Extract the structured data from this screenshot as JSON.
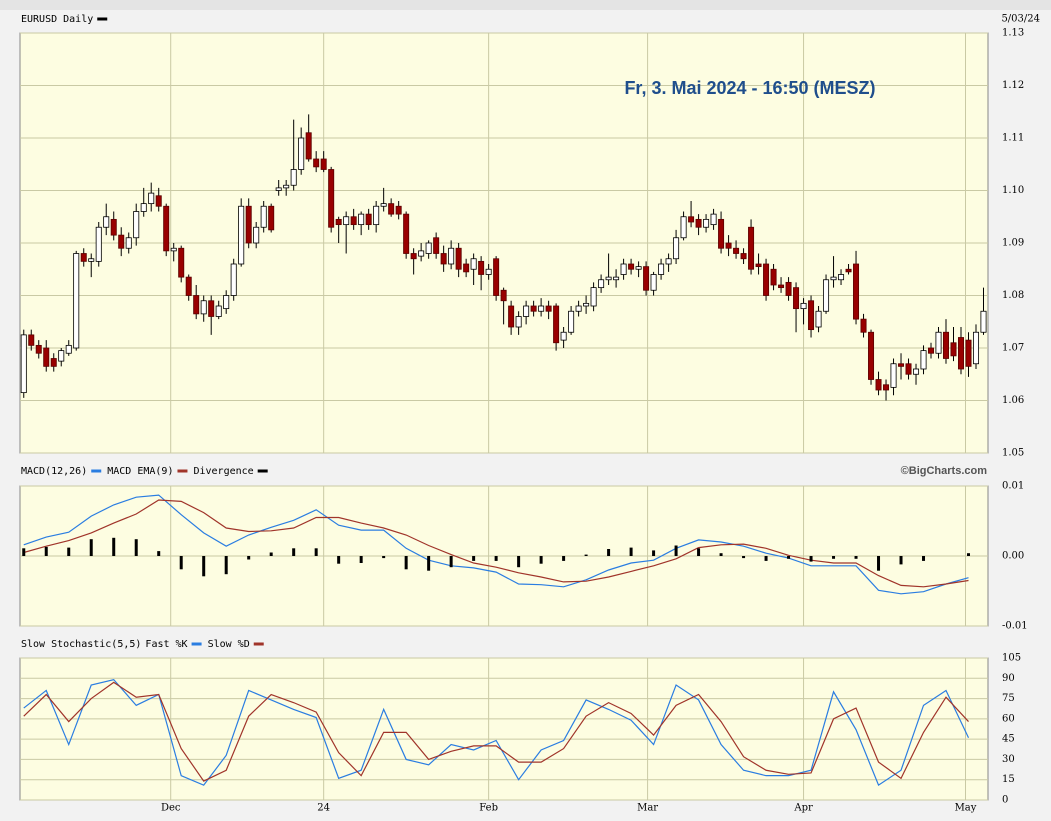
{
  "chart_data": [
    {
      "type": "candlestick",
      "title": "EURUSD Daily",
      "date": "5/03/24",
      "annotation": "Fr, 3. Mai 2024 - 16:50 (MESZ)",
      "legend_color": "#000000",
      "up_color": "#ffffff",
      "down_color": "#990000",
      "xlim": [
        -0.5,
        128.6
      ],
      "ylim": [
        1.05,
        1.13
      ],
      "yticks": [
        1.13,
        1.12,
        1.11,
        {
          "value": 1.1,
          "label": "1.10"
        },
        1.09,
        1.08,
        1.07,
        1.06,
        1.05
      ],
      "ohlc": [
        [
          1.0615,
          1.0735,
          1.0605,
          1.0725
        ],
        [
          1.0725,
          1.0735,
          1.0695,
          1.0705
        ],
        [
          1.0705,
          1.0715,
          1.068,
          1.069
        ],
        [
          1.07,
          1.0715,
          1.0655,
          1.0665
        ],
        [
          1.068,
          1.069,
          1.0655,
          1.0665
        ],
        [
          1.0675,
          1.07,
          1.0665,
          1.0695
        ],
        [
          1.069,
          1.0715,
          1.0685,
          1.0705
        ],
        [
          1.07,
          1.0885,
          1.0695,
          1.088
        ],
        [
          1.088,
          1.089,
          1.0855,
          1.0865
        ],
        [
          1.0865,
          1.088,
          1.0835,
          1.087
        ],
        [
          1.0865,
          1.094,
          1.0855,
          1.093
        ],
        [
          1.093,
          1.0975,
          1.0915,
          1.095
        ],
        [
          1.0945,
          1.096,
          1.0905,
          1.0915
        ],
        [
          1.0915,
          1.093,
          1.0875,
          1.089
        ],
        [
          1.089,
          1.092,
          1.088,
          1.091
        ],
        [
          1.091,
          1.0975,
          1.0895,
          1.096
        ],
        [
          1.096,
          1.1005,
          1.095,
          1.0975
        ],
        [
          1.0975,
          1.1015,
          1.096,
          1.0995
        ],
        [
          1.099,
          1.1005,
          1.096,
          1.097
        ],
        [
          1.097,
          1.0975,
          1.0875,
          1.0885
        ],
        [
          1.0885,
          1.09,
          1.0865,
          1.089
        ],
        [
          1.089,
          1.0895,
          1.0825,
          1.0835
        ],
        [
          1.0835,
          1.084,
          1.079,
          1.08
        ],
        [
          1.08,
          1.082,
          1.0755,
          1.0765
        ],
        [
          1.0765,
          1.08,
          1.075,
          1.079
        ],
        [
          1.079,
          1.08,
          1.0725,
          1.076
        ],
        [
          1.076,
          1.079,
          1.0755,
          1.078
        ],
        [
          1.0775,
          1.081,
          1.0765,
          1.08
        ],
        [
          1.08,
          1.087,
          1.079,
          1.086
        ],
        [
          1.086,
          1.0985,
          1.0855,
          1.097
        ],
        [
          1.097,
          1.0985,
          1.089,
          1.09
        ],
        [
          1.09,
          1.094,
          1.089,
          1.093
        ],
        [
          1.093,
          1.098,
          1.092,
          1.097
        ],
        [
          1.097,
          1.0975,
          1.092,
          1.0925
        ],
        [
          1.1,
          1.102,
          1.099,
          1.1005
        ],
        [
          1.1005,
          1.102,
          1.099,
          1.101
        ],
        [
          1.101,
          1.1135,
          1.1,
          1.104
        ],
        [
          1.104,
          1.112,
          1.103,
          1.11
        ],
        [
          1.111,
          1.1145,
          1.1055,
          1.106
        ],
        [
          1.106,
          1.1075,
          1.1035,
          1.1045
        ],
        [
          1.106,
          1.1075,
          1.1035,
          1.104
        ],
        [
          1.104,
          1.1045,
          1.092,
          1.093
        ],
        [
          1.0945,
          1.095,
          1.09,
          1.0935
        ],
        [
          1.0935,
          1.096,
          1.088,
          1.095
        ],
        [
          1.095,
          1.0965,
          1.0925,
          1.0935
        ],
        [
          1.0935,
          1.096,
          1.0915,
          1.0955
        ],
        [
          1.0955,
          1.0965,
          1.0925,
          1.0935
        ],
        [
          1.0935,
          1.098,
          1.092,
          1.097
        ],
        [
          1.097,
          1.1005,
          1.096,
          1.0975
        ],
        [
          1.0975,
          1.0985,
          1.095,
          1.0955
        ],
        [
          1.097,
          1.098,
          1.0945,
          1.0955
        ],
        [
          1.0955,
          1.096,
          1.087,
          1.088
        ],
        [
          1.088,
          1.089,
          1.084,
          1.087
        ],
        [
          1.0875,
          1.09,
          1.0865,
          1.0885
        ],
        [
          1.088,
          1.0905,
          1.087,
          1.09
        ],
        [
          1.091,
          1.092,
          1.087,
          1.088
        ],
        [
          1.088,
          1.0895,
          1.0845,
          1.086
        ],
        [
          1.086,
          1.0905,
          1.085,
          1.089
        ],
        [
          1.089,
          1.09,
          1.0835,
          1.085
        ],
        [
          1.086,
          1.087,
          1.0835,
          1.0845
        ],
        [
          1.085,
          1.088,
          1.082,
          1.087
        ],
        [
          1.0865,
          1.0875,
          1.081,
          1.084
        ],
        [
          1.084,
          1.086,
          1.083,
          1.085
        ],
        [
          1.087,
          1.0875,
          1.079,
          1.08
        ],
        [
          1.081,
          1.0815,
          1.0745,
          1.079
        ],
        [
          1.078,
          1.079,
          1.0725,
          1.074
        ],
        [
          1.074,
          1.077,
          1.0725,
          1.076
        ],
        [
          1.076,
          1.079,
          1.0745,
          1.078
        ],
        [
          1.078,
          1.079,
          1.076,
          1.077
        ],
        [
          1.077,
          1.0795,
          1.076,
          1.078
        ],
        [
          1.078,
          1.079,
          1.0755,
          1.077
        ],
        [
          1.078,
          1.0785,
          1.0695,
          1.071
        ],
        [
          1.0715,
          1.074,
          1.07,
          1.073
        ],
        [
          1.073,
          1.078,
          1.0725,
          1.077
        ],
        [
          1.077,
          1.079,
          1.076,
          1.078
        ],
        [
          1.078,
          1.08,
          1.0765,
          1.0785
        ],
        [
          1.078,
          1.0825,
          1.077,
          1.0815
        ],
        [
          1.0815,
          1.084,
          1.0805,
          1.083
        ],
        [
          1.083,
          1.088,
          1.082,
          1.0835
        ],
        [
          1.083,
          1.085,
          1.0815,
          1.0835
        ],
        [
          1.084,
          1.087,
          1.083,
          1.086
        ],
        [
          1.086,
          1.087,
          1.084,
          1.085
        ],
        [
          1.085,
          1.0865,
          1.0835,
          1.0855
        ],
        [
          1.0855,
          1.0865,
          1.08,
          1.081
        ],
        [
          1.081,
          1.0845,
          1.08,
          1.084
        ],
        [
          1.084,
          1.087,
          1.083,
          1.086
        ],
        [
          1.086,
          1.088,
          1.0845,
          1.087
        ],
        [
          1.087,
          1.0925,
          1.086,
          1.091
        ],
        [
          1.091,
          1.096,
          1.0905,
          1.095
        ],
        [
          1.095,
          1.098,
          1.093,
          1.094
        ],
        [
          1.0945,
          1.0955,
          1.0915,
          1.093
        ],
        [
          1.093,
          1.0955,
          1.092,
          1.0945
        ],
        [
          1.0935,
          1.0965,
          1.0925,
          1.0955
        ],
        [
          1.0945,
          1.096,
          1.088,
          1.089
        ],
        [
          1.09,
          1.0915,
          1.0875,
          1.089
        ],
        [
          1.089,
          1.0905,
          1.087,
          1.088
        ],
        [
          1.088,
          1.089,
          1.086,
          1.087
        ],
        [
          1.093,
          1.0945,
          1.084,
          1.085
        ],
        [
          1.086,
          1.088,
          1.084,
          1.0855
        ],
        [
          1.086,
          1.087,
          1.079,
          1.08
        ],
        [
          1.085,
          1.086,
          1.081,
          1.082
        ],
        [
          1.082,
          1.0835,
          1.0805,
          1.0815
        ],
        [
          1.0825,
          1.0835,
          1.079,
          1.08
        ],
        [
          1.0815,
          1.0825,
          1.073,
          1.0775
        ],
        [
          1.0775,
          1.0795,
          1.0745,
          1.0785
        ],
        [
          1.079,
          1.08,
          1.072,
          1.0735
        ],
        [
          1.074,
          1.078,
          1.073,
          1.077
        ],
        [
          1.077,
          1.084,
          1.0765,
          1.083
        ],
        [
          1.083,
          1.0875,
          1.0815,
          1.0835
        ],
        [
          1.083,
          1.085,
          1.082,
          1.084
        ],
        [
          1.085,
          1.086,
          1.084,
          1.0845
        ],
        [
          1.086,
          1.0885,
          1.0745,
          1.0755
        ],
        [
          1.0755,
          1.0765,
          1.072,
          1.073
        ],
        [
          1.073,
          1.0735,
          1.063,
          1.064
        ],
        [
          1.064,
          1.0655,
          1.061,
          1.062
        ],
        [
          1.063,
          1.064,
          1.06,
          1.062
        ],
        [
          1.0625,
          1.068,
          1.061,
          1.067
        ],
        [
          1.067,
          1.069,
          1.064,
          1.0665
        ],
        [
          1.067,
          1.068,
          1.064,
          1.065
        ],
        [
          1.065,
          1.067,
          1.063,
          1.066
        ],
        [
          1.066,
          1.0705,
          1.065,
          1.0695
        ],
        [
          1.07,
          1.071,
          1.068,
          1.069
        ],
        [
          1.069,
          1.074,
          1.068,
          1.073
        ],
        [
          1.073,
          1.0755,
          1.067,
          1.068
        ],
        [
          1.071,
          1.074,
          1.0675,
          1.0685
        ],
        [
          1.072,
          1.074,
          1.065,
          1.066
        ],
        [
          1.0715,
          1.073,
          1.0645,
          1.0665
        ],
        [
          1.067,
          1.0745,
          1.066,
          1.073
        ],
        [
          1.073,
          1.0815,
          1.0725,
          1.077
        ]
      ]
    },
    {
      "type": "line",
      "credit": "©BigCharts.com",
      "xlim": [
        -0.5,
        128.6
      ],
      "ylim": [
        -0.01,
        0.01
      ],
      "yticks": [
        0.01,
        {
          "value": 0,
          "label": "0.00"
        },
        -0.01
      ],
      "x": [
        0,
        3,
        6,
        9,
        12,
        15,
        18,
        21,
        24,
        27,
        30,
        33,
        36,
        39,
        42,
        45,
        48,
        51,
        54,
        57,
        60,
        63,
        66,
        69,
        72,
        75,
        78,
        81,
        84,
        87,
        90,
        93,
        96,
        99,
        102,
        105,
        108,
        111,
        114,
        117,
        120,
        123,
        126
      ],
      "series": [
        {
          "name": "MACD(12,26)",
          "color": "#2a7de1",
          "kind": "line",
          "values": [
            0.0016,
            0.0027,
            0.0034,
            0.0057,
            0.0073,
            0.0084,
            0.0087,
            0.0059,
            0.0033,
            0.0014,
            0.003,
            0.0041,
            0.0051,
            0.0066,
            0.0044,
            0.0037,
            0.0037,
            0.0011,
            -0.0006,
            -0.0014,
            -0.0017,
            -0.0023,
            -0.004,
            -0.0041,
            -0.0044,
            -0.0034,
            -0.002,
            -0.001,
            -0.0006,
            0.0011,
            0.0023,
            0.002,
            0.0014,
            0.0004,
            -0.0003,
            -0.0014,
            -0.0014,
            -0.0014,
            -0.0049,
            -0.0054,
            -0.0051,
            -0.004,
            -0.0031
          ]
        },
        {
          "name": "MACD EMA(9)",
          "color": "#a0342a",
          "kind": "line",
          "values": [
            0.0005,
            0.0014,
            0.0022,
            0.0033,
            0.0047,
            0.006,
            0.008,
            0.0078,
            0.0062,
            0.004,
            0.0035,
            0.0036,
            0.004,
            0.0055,
            0.0055,
            0.0047,
            0.004,
            0.003,
            0.0015,
            0.0002,
            -0.001,
            -0.0016,
            -0.0024,
            -0.003,
            -0.0037,
            -0.0036,
            -0.003,
            -0.0022,
            -0.0014,
            -0.0004,
            0.0012,
            0.0016,
            0.0017,
            0.0011,
            0.0001,
            -0.0006,
            -0.001,
            -0.001,
            -0.0028,
            -0.0042,
            -0.0044,
            -0.004,
            -0.0035
          ]
        },
        {
          "name": "Divergence",
          "color": "#000000",
          "kind": "bar",
          "values": [
            0.0011,
            0.0013,
            0.0012,
            0.0024,
            0.0026,
            0.0024,
            0.0007,
            -0.0019,
            -0.0029,
            -0.0026,
            -0.0005,
            0.0005,
            0.0011,
            0.0011,
            -0.0011,
            -0.001,
            -0.0003,
            -0.0019,
            -0.0021,
            -0.0016,
            -0.0007,
            -0.0007,
            -0.0016,
            -0.0011,
            -0.0007,
            0.0002,
            0.001,
            0.0012,
            0.0008,
            0.0015,
            0.0011,
            0.0004,
            -0.0003,
            -0.0007,
            -0.0004,
            -0.0008,
            -0.0004,
            -0.0004,
            -0.0021,
            -0.0012,
            -0.0007,
            0,
            0.0004
          ]
        }
      ]
    },
    {
      "type": "line",
      "title": "Slow Stochastic(5,5)",
      "xlim": [
        -0.5,
        128.6
      ],
      "ylim": [
        0,
        105
      ],
      "yticks": [
        105,
        90,
        75,
        60,
        45,
        30,
        15,
        0
      ],
      "xticks": [
        {
          "value": 19.6,
          "label": "Dec"
        },
        {
          "value": 40,
          "label": "24"
        },
        {
          "value": 62,
          "label": "Feb"
        },
        {
          "value": 83.2,
          "label": "Mar"
        },
        {
          "value": 104,
          "label": "Apr"
        },
        {
          "value": 125.6,
          "label": "May"
        }
      ],
      "x": [
        0,
        3,
        6,
        9,
        12,
        15,
        18,
        21,
        24,
        27,
        30,
        33,
        36,
        39,
        42,
        45,
        48,
        51,
        54,
        57,
        60,
        63,
        66,
        69,
        72,
        75,
        78,
        81,
        84,
        87,
        90,
        93,
        96,
        99,
        102,
        105,
        108,
        111,
        114,
        117,
        120,
        123,
        126
      ],
      "series": [
        {
          "name": "Fast %K",
          "color": "#2a7de1",
          "kind": "line",
          "values": [
            68,
            81,
            41,
            85,
            89,
            70,
            78,
            18,
            11,
            33,
            81,
            74,
            67,
            61,
            16,
            22,
            67,
            30,
            26,
            41,
            37,
            44,
            15,
            37,
            44,
            74,
            67,
            59,
            41,
            85,
            74,
            41,
            22,
            18,
            18,
            22,
            80,
            52,
            11,
            22,
            70,
            81,
            46
          ]
        },
        {
          "name": "Slow %D",
          "color": "#a0342a",
          "kind": "line",
          "values": [
            62,
            78,
            58,
            75,
            87,
            76,
            78,
            38,
            14,
            22,
            62,
            78,
            72,
            65,
            35,
            18,
            50,
            50,
            30,
            36,
            40,
            40,
            28,
            28,
            38,
            62,
            72,
            64,
            48,
            70,
            78,
            58,
            32,
            22,
            19,
            20,
            60,
            68,
            28,
            16,
            50,
            76,
            58
          ]
        }
      ]
    }
  ]
}
